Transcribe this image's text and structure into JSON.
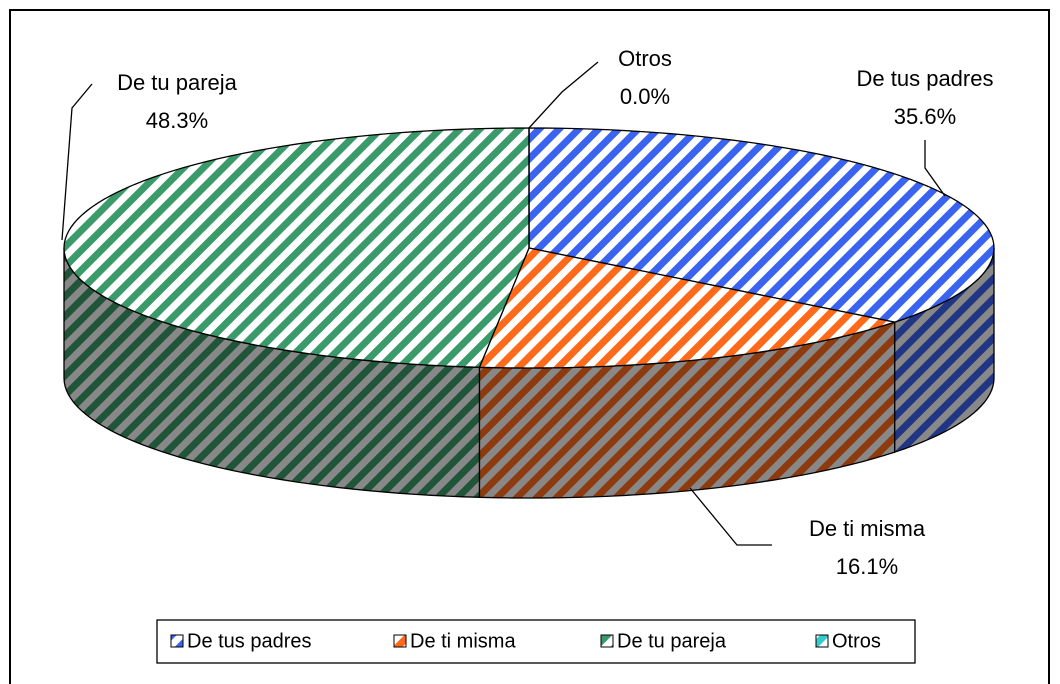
{
  "chart_data": {
    "type": "pie",
    "categories": [
      "De tus padres",
      "De ti misma",
      "De tu pareja",
      "Otros"
    ],
    "values": [
      35.6,
      16.1,
      48.3,
      0.0
    ],
    "value_labels": [
      "35.6%",
      "16.1%",
      "48.3%",
      "0.0%"
    ],
    "colors": [
      "#3a63f0",
      "#ff6a1a",
      "#3a9a6a",
      "#33cccc"
    ],
    "legend": "bottom"
  }
}
